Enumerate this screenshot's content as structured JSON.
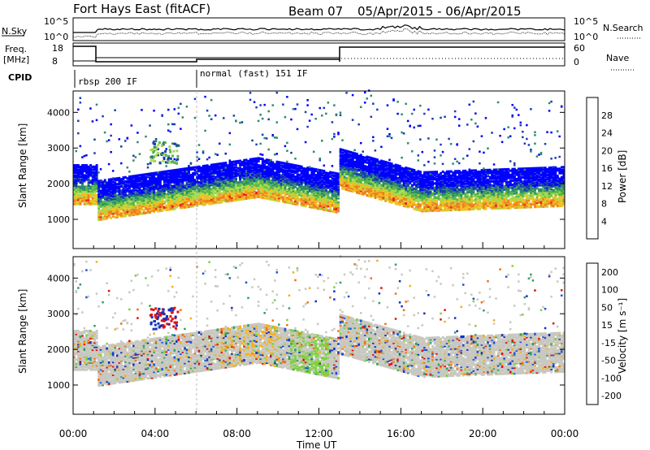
{
  "header": {
    "site": "Fort Hays East (fitACF)",
    "beam": "Beam 07",
    "dates": "05/Apr/2015 - 06/Apr/2015"
  },
  "labels": {
    "nsky": "N.Sky",
    "nsearch": "N.Search",
    "freq_line1": "Freq.",
    "freq_line2": "[MHz]",
    "nave": "Nave",
    "cpid": "CPID",
    "noise_ticks": [
      "10^5",
      "10^0"
    ],
    "freq_ticks": [
      "18",
      "8"
    ],
    "nave_ticks": [
      "60",
      "0"
    ]
  },
  "cpid_segments": [
    {
      "label": "rbsp 200 IF",
      "start_hour": 0
    },
    {
      "label": "normal (fast) 151 IF",
      "start_hour": 6
    }
  ],
  "chart_data": [
    {
      "type": "heatmap",
      "title": "",
      "xlabel": "Time UT",
      "ylabel": "Slant Range [km]",
      "x_ticks": [
        "00:00",
        "04:00",
        "08:00",
        "12:00",
        "16:00",
        "20:00",
        "00:00"
      ],
      "xlim_hours": [
        0,
        24
      ],
      "ylim": [
        180,
        4600
      ],
      "y_ticks": [
        1000,
        2000,
        3000,
        4000
      ],
      "colorbar": {
        "label": "Power [dB]",
        "ticks": [
          "4",
          "8",
          "12",
          "16",
          "20",
          "24",
          "28"
        ],
        "colors": [
          "#0000ff",
          "#1a3fae",
          "#2e8a6c",
          "#55b84a",
          "#a8d84a",
          "#f0c020",
          "#f08020",
          "#e02010"
        ]
      }
    },
    {
      "type": "heatmap",
      "title": "",
      "xlabel": "Time UT",
      "ylabel": "Slant Range [km]",
      "x_ticks": [
        "00:00",
        "04:00",
        "08:00",
        "12:00",
        "16:00",
        "20:00",
        "00:00"
      ],
      "xlim_hours": [
        0,
        24
      ],
      "ylim": [
        180,
        4600
      ],
      "y_ticks": [
        1000,
        2000,
        3000,
        4000
      ],
      "colorbar": {
        "label": "Velocity [m s⁻¹]",
        "ticks": [
          "200",
          "100",
          "50",
          "15",
          "-15",
          "-50",
          "-100",
          "-200"
        ],
        "colors": [
          "#1030c0",
          "#2050e0",
          "#30a060",
          "#80d040",
          "#c8c8c0",
          "#f0b020",
          "#f07010",
          "#e01010"
        ]
      }
    }
  ]
}
